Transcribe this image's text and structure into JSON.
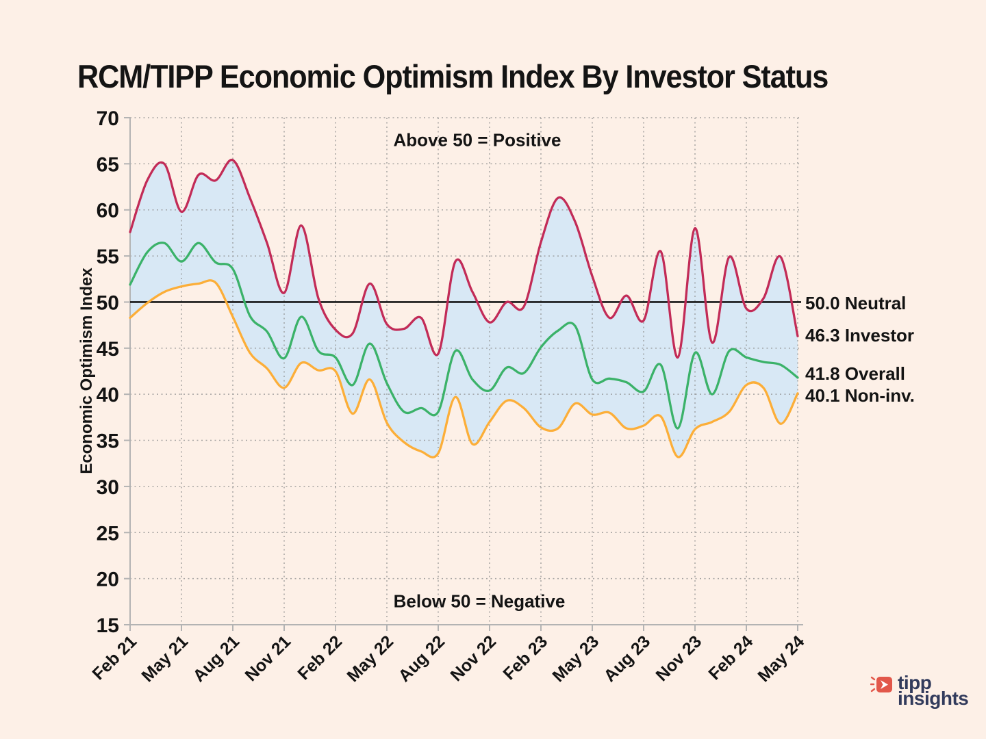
{
  "header": {
    "title": "RCM/TIPP Economic Optimism Index By Investor Status"
  },
  "chart_data": {
    "type": "line",
    "title": "RCM/TIPP Economic Optimism Index By Investor Status",
    "xlabel": "",
    "ylabel": "Economic Optimism Index",
    "ylim": [
      15,
      70
    ],
    "y_ticks": [
      15,
      20,
      25,
      30,
      35,
      40,
      45,
      50,
      55,
      60,
      65,
      70
    ],
    "x_tick_labels": [
      "Feb 21",
      "May 21",
      "Aug 21",
      "Nov 21",
      "Feb 22",
      "May 22",
      "Aug 22",
      "Nov 22",
      "Feb 23",
      "May 23",
      "Aug 23",
      "Nov 23",
      "Feb 24",
      "May 24"
    ],
    "months": [
      "Feb 21",
      "Mar 21",
      "Apr 21",
      "May 21",
      "Jun 21",
      "Jul 21",
      "Aug 21",
      "Sep 21",
      "Oct 21",
      "Nov 21",
      "Dec 21",
      "Jan 22",
      "Feb 22",
      "Mar 22",
      "Apr 22",
      "May 22",
      "Jun 22",
      "Jul 22",
      "Aug 22",
      "Sep 22",
      "Oct 22",
      "Nov 22",
      "Dec 22",
      "Jan 23",
      "Feb 23",
      "Mar 23",
      "Apr 23",
      "May 23",
      "Jun 23",
      "Jul 23",
      "Aug 23",
      "Sep 23",
      "Oct 23",
      "Nov 23",
      "Dec 23",
      "Jan 24",
      "Feb 24",
      "Mar 24",
      "Apr 24",
      "May 24"
    ],
    "series": [
      {
        "name": "Investor",
        "color": "#c22b57",
        "values": [
          57.6,
          63.2,
          65.0,
          59.8,
          63.8,
          63.2,
          65.4,
          61.3,
          56.4,
          51.0,
          58.3,
          50.4,
          47.0,
          46.6,
          52.0,
          47.6,
          47.1,
          48.3,
          44.4,
          54.4,
          51.1,
          47.8,
          50.0,
          49.5,
          56.5,
          61.3,
          58.7,
          52.8,
          48.3,
          50.7,
          48.0,
          55.5,
          44.0,
          58.0,
          45.6,
          54.9,
          49.3,
          50.4,
          54.9,
          46.3
        ]
      },
      {
        "name": "Overall",
        "color": "#3bb269",
        "values": [
          51.9,
          55.4,
          56.4,
          54.4,
          56.4,
          54.3,
          53.6,
          48.5,
          46.8,
          43.9,
          48.4,
          44.7,
          44.0,
          41.0,
          45.5,
          41.2,
          38.1,
          38.5,
          38.1,
          44.7,
          41.6,
          40.4,
          42.9,
          42.3,
          45.1,
          46.9,
          47.4,
          41.6,
          41.7,
          41.3,
          40.3,
          43.2,
          36.3,
          44.5,
          40.0,
          44.7,
          44.0,
          43.5,
          43.2,
          41.8
        ]
      },
      {
        "name": "Non-investor",
        "color": "#fcae38",
        "values": [
          48.3,
          49.9,
          51.1,
          51.7,
          52.0,
          52.1,
          48.4,
          44.5,
          42.8,
          40.7,
          43.4,
          42.6,
          42.5,
          37.9,
          41.6,
          36.9,
          34.8,
          33.8,
          33.6,
          39.7,
          34.6,
          37.0,
          39.3,
          38.5,
          36.4,
          36.3,
          39.0,
          37.8,
          38.0,
          36.3,
          36.6,
          37.6,
          33.2,
          36.2,
          37.0,
          38.1,
          41.0,
          40.7,
          36.8,
          40.1
        ]
      }
    ],
    "band": {
      "between": [
        "Investor",
        "Non-investor"
      ],
      "color": "#d8e8f5"
    },
    "neutral_line": {
      "value": 50,
      "color": "#161616"
    },
    "grid": true,
    "legend_position": "right-end-labels",
    "annotations": [
      {
        "text": "Above 50 = Positive",
        "position": "top-center"
      },
      {
        "text": "Below 50 = Negative",
        "position": "bottom-center"
      }
    ],
    "end_labels": [
      {
        "text": "50.0 Neutral",
        "value": 50.0
      },
      {
        "text": "46.3 Investor",
        "value": 46.3
      },
      {
        "text": "41.8 Overall",
        "value": 41.8
      },
      {
        "text": "40.1 Non-inv.",
        "value": 40.1
      }
    ]
  },
  "colors": {
    "background": "#fdf0e7",
    "band_fill": "#d8e8f5",
    "grid": "#909090",
    "axis": "#b3b3b3",
    "text": "#131313"
  },
  "logo": {
    "line1": "tipp",
    "line2": "insights",
    "icon": "tipp-arrow-icon",
    "accent": "#e2574a",
    "navy": "#323b5c"
  }
}
